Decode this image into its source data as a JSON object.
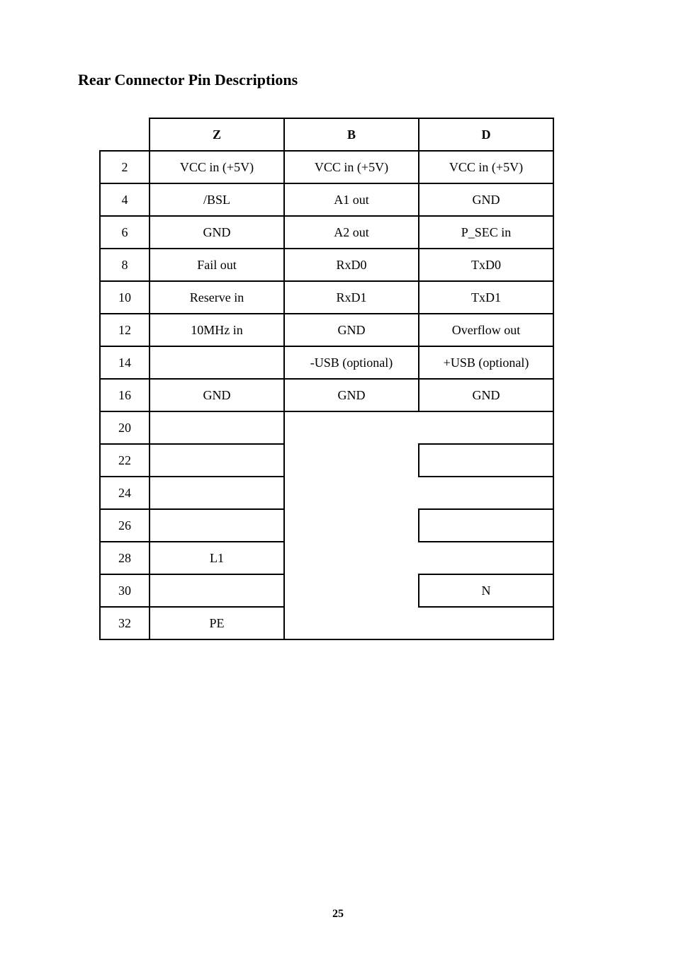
{
  "heading": "Rear Connector Pin Descriptions",
  "page_number": "25",
  "table": {
    "columns": {
      "z": "Z",
      "b": "B",
      "d": "D"
    },
    "rows": {
      "2": {
        "pin": "2",
        "z": "VCC in (+5V)",
        "b": "VCC in (+5V)",
        "d": "VCC in (+5V)"
      },
      "4": {
        "pin": "4",
        "z": "/BSL",
        "b": "A1 out",
        "d": "GND"
      },
      "6": {
        "pin": "6",
        "z": "GND",
        "b": "A2 out",
        "d": "P_SEC in"
      },
      "8": {
        "pin": "8",
        "z": "Fail out",
        "b": "RxD0",
        "d": "TxD0"
      },
      "10": {
        "pin": "10",
        "z": "Reserve in",
        "b": "RxD1",
        "d": "TxD1"
      },
      "12": {
        "pin": "12",
        "z": "10MHz in",
        "b": "GND",
        "d": "Overflow out"
      },
      "14": {
        "pin": "14",
        "z": "",
        "b": "-USB (optional)",
        "d": "+USB (optional)"
      },
      "16": {
        "pin": "16",
        "z": "GND",
        "b": "GND",
        "d": "GND"
      },
      "20": {
        "pin": "20",
        "z": "",
        "b": "",
        "d": ""
      },
      "22": {
        "pin": "22",
        "z": "",
        "b": "",
        "d": ""
      },
      "24": {
        "pin": "24",
        "z": "",
        "b": "",
        "d": ""
      },
      "26": {
        "pin": "26",
        "z": "",
        "b": "",
        "d": ""
      },
      "28": {
        "pin": "28",
        "z": "L1",
        "b": "",
        "d": ""
      },
      "30": {
        "pin": "30",
        "z": "",
        "b": "",
        "d": "N"
      },
      "32": {
        "pin": "32",
        "z": "PE",
        "b": "",
        "d": ""
      }
    }
  }
}
